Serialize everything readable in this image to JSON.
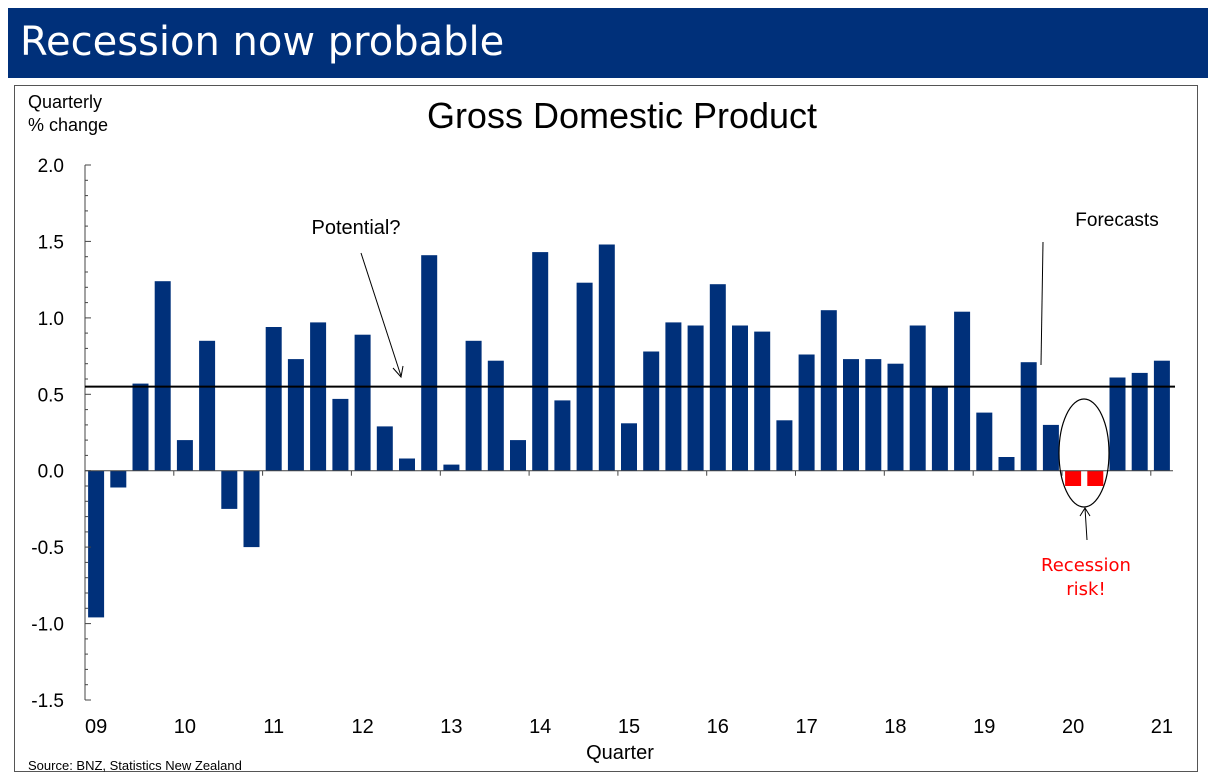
{
  "banner": {
    "title": "Recession now probable"
  },
  "chart_data": {
    "type": "bar",
    "title": "Gross Domestic Product",
    "ylabel_lines": [
      "Quarterly",
      "% change"
    ],
    "xlabel": "Quarter",
    "ylim": [
      -1.5,
      2.0
    ],
    "yticks": [
      2.0,
      1.5,
      1.0,
      0.5,
      0.0,
      -0.5,
      -1.0,
      -1.5
    ],
    "ytick_labels": [
      "2.0",
      "1.5",
      "1.0",
      "0.5",
      "0.0",
      "-0.5",
      "-1.0",
      "-1.5"
    ],
    "year_labels": [
      "09",
      "10",
      "11",
      "12",
      "13",
      "14",
      "15",
      "16",
      "17",
      "18",
      "19",
      "20",
      "21"
    ],
    "categories": [
      "09Q1",
      "09Q2",
      "09Q3",
      "09Q4",
      "10Q1",
      "10Q2",
      "10Q3",
      "10Q4",
      "11Q1",
      "11Q2",
      "11Q3",
      "11Q4",
      "12Q1",
      "12Q2",
      "12Q3",
      "12Q4",
      "13Q1",
      "13Q2",
      "13Q3",
      "13Q4",
      "14Q1",
      "14Q2",
      "14Q3",
      "14Q4",
      "15Q1",
      "15Q2",
      "15Q3",
      "15Q4",
      "16Q1",
      "16Q2",
      "16Q3",
      "16Q4",
      "17Q1",
      "17Q2",
      "17Q3",
      "17Q4",
      "18Q1",
      "18Q2",
      "18Q3",
      "18Q4",
      "19Q1",
      "19Q2",
      "19Q3",
      "19Q4",
      "20Q1",
      "20Q2",
      "20Q3",
      "20Q4",
      "21Q1"
    ],
    "values": [
      -0.96,
      -0.11,
      0.57,
      1.24,
      0.2,
      0.85,
      -0.25,
      -0.5,
      0.94,
      0.73,
      0.97,
      0.47,
      0.89,
      0.29,
      0.08,
      1.41,
      0.04,
      0.85,
      0.72,
      0.2,
      1.43,
      0.46,
      1.23,
      1.48,
      0.31,
      0.78,
      0.97,
      0.95,
      1.22,
      0.95,
      0.91,
      0.33,
      0.76,
      1.05,
      0.73,
      0.73,
      0.7,
      0.95,
      0.55,
      1.04,
      0.38,
      0.09,
      0.71,
      0.3,
      -0.1,
      -0.1,
      0.61,
      0.64,
      0.72
    ],
    "highlighted_categories": [
      "20Q1",
      "20Q2"
    ],
    "potential_line": 0.55,
    "colors": {
      "bar": "#00307A",
      "highlight": "#FF0000",
      "annotation_red": "#FF0000"
    },
    "annotations": {
      "potential": "Potential?",
      "forecasts": "Forecasts",
      "recession_lines": [
        "Recession",
        "risk!"
      ]
    },
    "source": "Source:  BNZ,  Statistics New Zealand",
    "grid": false,
    "legend": "none"
  }
}
